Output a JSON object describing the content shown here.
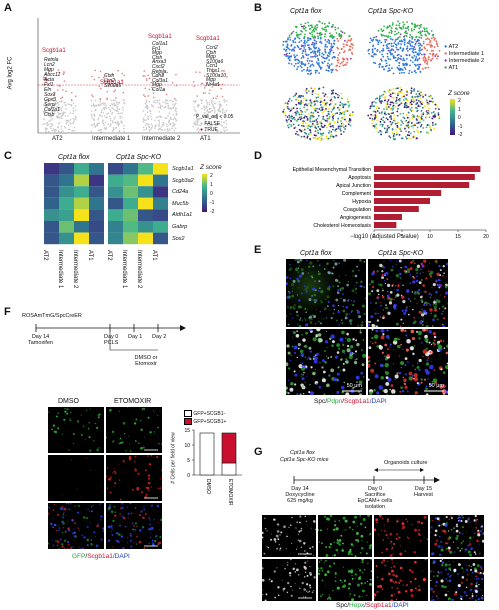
{
  "panelA": {
    "label": "A",
    "ylabel": "Avg log2 FC",
    "groups": [
      "AT2",
      "Intermediate 1",
      "Intermediate 2",
      "AT1"
    ],
    "highlight_gene": "Scgb1a1",
    "genes": {
      "AT2": [
        "Retnla",
        "Lcn2",
        "Mgp",
        "Abcc11",
        "Acta",
        "Fxl1",
        "Eln",
        "Sox3",
        "Gpx3",
        "Serpi",
        "Col1a1",
        "Ctsb"
      ],
      "Intermediate 1": [
        "Ctsh",
        "Lcn2",
        "S100a6"
      ],
      "Intermediate 2": [
        "Col1a1",
        "Fn1",
        "Mgp",
        "Ctsh",
        "Anxa3",
        "Cxcl2",
        "Retnla",
        "Cdh3",
        "Col3a1",
        "Mgp",
        "Col1a"
      ],
      "AT1": [
        "Ccn2",
        "Ctsh",
        "Mgp",
        "S100a6",
        "Ccn1",
        "Thbs1",
        "S100a10",
        "Mgp",
        "Nr4a1"
      ]
    },
    "legend_title": "P_val_adj < 0.05",
    "legend_items": [
      "FALSE",
      "TRUE"
    ]
  },
  "panelB": {
    "label": "B",
    "col_titles": [
      "Cpt1a flox",
      "Cpt1a Spc-KO"
    ],
    "legend_items": [
      {
        "name": "AT2",
        "color": "#2e7ad6"
      },
      {
        "name": "Intermediate 1",
        "color": "#e86a5a"
      },
      {
        "name": "Intermediate 2",
        "color": "#8b3fb0"
      },
      {
        "name": "AT1",
        "color": "#2fb34a"
      }
    ],
    "zscore_title": "Z score",
    "zscore_ticks": [
      "2",
      "1",
      "0",
      "-1",
      "-2"
    ]
  },
  "panelC": {
    "label": "C",
    "col_titles": [
      "Cpt1a flox",
      "Cpt1a Spc-KO"
    ],
    "genes": [
      "Scgb1a1",
      "Scgb3a2",
      "Cd24a",
      "Muc5b",
      "Aldh1a1",
      "Gabrp",
      "Sox2"
    ],
    "columns": [
      "AT2",
      "Intermediate 1",
      "Intermediate 2",
      "AT1"
    ],
    "zscore_title": "Z score",
    "zscore_ticks": [
      "2",
      "1",
      "0",
      "-1",
      "-2"
    ],
    "flox": [
      [
        -1.5,
        -1.0,
        0.5,
        -0.5
      ],
      [
        -1.0,
        -0.5,
        1.5,
        -1.5
      ],
      [
        -1.0,
        0.0,
        0.5,
        -1.0
      ],
      [
        -0.8,
        0.5,
        1.5,
        -0.5
      ],
      [
        0.0,
        0.3,
        2.0,
        -1.0
      ],
      [
        -1.0,
        1.0,
        -0.5,
        -1.2
      ],
      [
        -1.0,
        0.0,
        2.0,
        -1.0
      ]
    ],
    "ko": [
      [
        -1.2,
        -0.5,
        0.8,
        2.0
      ],
      [
        0.5,
        0.8,
        2.0,
        -0.5
      ],
      [
        0.0,
        1.0,
        0.0,
        -1.5
      ],
      [
        -1.0,
        0.5,
        2.0,
        -0.3
      ],
      [
        0.5,
        1.0,
        -1.0,
        -1.2
      ],
      [
        -0.3,
        0.8,
        0.0,
        0.5
      ],
      [
        -0.2,
        1.2,
        2.0,
        -1.0
      ]
    ]
  },
  "panelD": {
    "label": "D",
    "xlabel": "−log10 (Adjusted P value)",
    "ticks": [
      "0",
      "5",
      "10",
      "15",
      "20"
    ],
    "bar_color": "#b11e32",
    "chart_data": {
      "type": "bar",
      "categories": [
        "Epithelial Mesenchymal Transition",
        "Apoptosis",
        "Apical Junction",
        "Complement",
        "Hypoxia",
        "Coagulation",
        "Angiogenesis",
        "Cholesterol Homeostasis"
      ],
      "values": [
        19,
        18,
        17,
        12,
        10,
        8,
        5,
        4
      ],
      "xlim": [
        0,
        20
      ],
      "orientation": "horizontal"
    }
  },
  "panelE": {
    "label": "E",
    "col_titles": [
      "Cpt1a flox",
      "Cpt1a Spc-KO"
    ],
    "scale_left": "50 μm",
    "scale_right": "50 μm",
    "caption_parts": [
      "Spc/",
      "Pdpn",
      "/",
      "Scgb1a1",
      "/DAPI"
    ]
  },
  "panelF": {
    "label": "F",
    "mouse_line": "ROSAmTmG/SpcCreER",
    "timeline": [
      {
        "day": "Day 14",
        "event": "Tamoxifen"
      },
      {
        "day": "Day 0",
        "event": "PCLS"
      },
      {
        "day": "Day 1",
        "event": ""
      },
      {
        "day": "Day 2",
        "event": ""
      }
    ],
    "treatment": "DMSO or Etomoxir",
    "col_titles": [
      "DMSO",
      "ETOMOXIR"
    ],
    "caption_parts": [
      "GFP",
      "/",
      "Scgb1a1",
      "/DAPI"
    ],
    "bar_legend": [
      "GFP+SCGB1-",
      "GFP+SCGB1+"
    ],
    "bar_ylabel": "# Cells per field of view",
    "bar_yticks": [
      "0",
      "5",
      "10",
      "15"
    ],
    "chart_data": {
      "type": "bar",
      "categories": [
        "DMSO",
        "ETOMOXIR"
      ],
      "series": [
        {
          "name": "GFP+SCGB1-",
          "values": [
            14,
            4
          ]
        },
        {
          "name": "GFP+SCGB1+",
          "values": [
            0,
            10
          ]
        }
      ],
      "stacked": true,
      "ylim": [
        0,
        15
      ]
    }
  },
  "panelG": {
    "label": "G",
    "mice": [
      "Cpt1a flox",
      "Cpt1a Spc-KO mice"
    ],
    "organoid_label": "Organoids culture",
    "timeline": [
      {
        "day": "Day 14",
        "event": "Doxycycline 625 mg/kg"
      },
      {
        "day": "Day 0",
        "event": "Sacrifice EpCAM+ cells isolation"
      },
      {
        "day": "Day 15",
        "event": "Harvest"
      }
    ],
    "caption_parts": [
      "Spc/",
      "Hopx",
      "/",
      "Scgb1a1",
      "/DAPI"
    ]
  }
}
